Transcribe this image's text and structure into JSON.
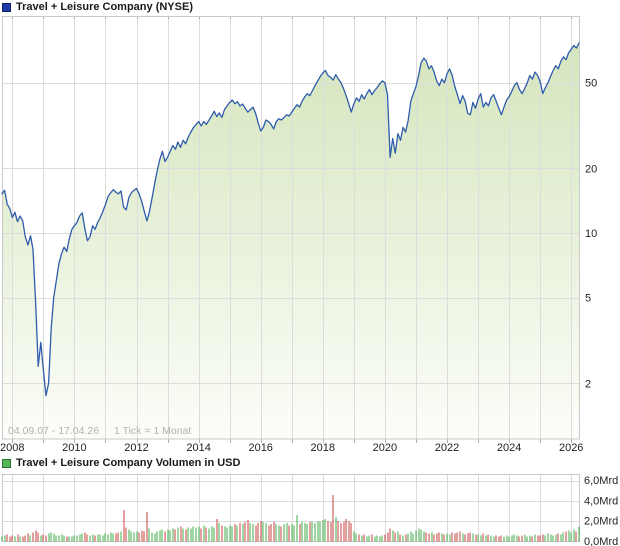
{
  "chart_data": [
    {
      "type": "line",
      "title": "Travel + Leisure Company (NYSE)",
      "legend_color": "#1b3aa5",
      "x_range_label": "04.09.07 - 17.04.26",
      "tick_note": "1 Tick = 1 Monat",
      "x_start_month": "2007-09",
      "x_end_month": "2026-04",
      "x_tick_labels": [
        "2008",
        "2010",
        "2012",
        "2014",
        "2016",
        "2018",
        "2020",
        "2022",
        "2024",
        "2026"
      ],
      "y_scale": "log",
      "y_ticks": [
        50,
        20,
        10,
        5,
        2
      ],
      "y_tick_labels": [
        "50",
        "20",
        "10",
        "5",
        "2"
      ],
      "y_range": [
        1.45,
        85
      ],
      "grid": true,
      "legend_position": "top-left",
      "line_color": "#2e5cab",
      "area_fill_top": "#cfe2b4",
      "area_fill_bottom": "#fbfdf8",
      "series": [
        {
          "name": "Travel + Leisure Company",
          "monthly_close": [
            15.2,
            15.8,
            13.6,
            13.0,
            11.8,
            12.5,
            11.3,
            12.0,
            11.4,
            9.6,
            8.8,
            9.7,
            8.4,
            4.8,
            2.4,
            3.1,
            2.3,
            1.75,
            2.0,
            3.6,
            5.0,
            6.0,
            7.2,
            8.0,
            8.6,
            8.2,
            9.4,
            10.4,
            10.8,
            11.2,
            12.0,
            12.4,
            10.5,
            9.2,
            9.6,
            10.8,
            10.4,
            11.2,
            11.8,
            12.6,
            13.6,
            14.8,
            15.4,
            15.9,
            15.5,
            15.2,
            15.7,
            13.2,
            12.8,
            14.6,
            15.4,
            15.8,
            16.1,
            15.2,
            14.0,
            12.6,
            11.4,
            12.6,
            14.6,
            17.0,
            19.5,
            22.0,
            24.0,
            21.5,
            22.5,
            24.0,
            25.5,
            24.5,
            26.5,
            25.0,
            27.0,
            26.0,
            28.0,
            29.5,
            31.0,
            32.0,
            33.0,
            31.5,
            33.0,
            32.0,
            33.5,
            35.0,
            36.8,
            34.8,
            36.2,
            34.5,
            37.5,
            39.0,
            40.5,
            41.5,
            40.0,
            40.8,
            39.0,
            39.8,
            38.0,
            36.5,
            37.5,
            38.5,
            36.0,
            32.5,
            29.8,
            31.0,
            33.5,
            33.0,
            32.0,
            30.5,
            33.0,
            34.0,
            33.5,
            34.5,
            35.5,
            35.0,
            36.5,
            38.0,
            39.5,
            38.5,
            41.0,
            43.0,
            44.5,
            43.5,
            46.0,
            48.5,
            51.0,
            53.5,
            55.5,
            57.0,
            54.0,
            53.0,
            51.5,
            54.5,
            52.0,
            50.0,
            47.0,
            43.5,
            40.0,
            36.5,
            40.0,
            42.5,
            41.0,
            44.0,
            42.0,
            44.5,
            46.5,
            44.0,
            46.0,
            47.5,
            49.5,
            51.0,
            50.0,
            44.0,
            22.5,
            27.5,
            23.5,
            29.0,
            27.0,
            31.0,
            29.5,
            33.5,
            41.0,
            44.5,
            48.0,
            54.0,
            62.0,
            65.0,
            63.0,
            58.0,
            60.0,
            56.0,
            51.0,
            48.5,
            52.0,
            50.0,
            55.0,
            58.0,
            54.0,
            48.0,
            44.0,
            40.0,
            43.5,
            41.0,
            36.0,
            35.5,
            40.5,
            38.0,
            42.0,
            44.5,
            38.5,
            40.5,
            39.0,
            42.5,
            44.0,
            41.0,
            38.0,
            35.5,
            38.5,
            41.5,
            43.0,
            45.5,
            48.5,
            50.0,
            46.5,
            44.5,
            47.0,
            50.0,
            54.0,
            52.0,
            56.0,
            54.0,
            50.5,
            44.5,
            47.5,
            50.0,
            53.5,
            57.0,
            60.0,
            58.0,
            63.0,
            66.0,
            64.0,
            69.0,
            71.5,
            74.5,
            72.5,
            76.5
          ]
        }
      ]
    },
    {
      "type": "bar",
      "title": "Travel + Leisure Company Volumen in USD",
      "legend_color": "#53b657",
      "unit": "Mrd USD",
      "y_ticks": [
        6,
        4,
        2,
        0
      ],
      "y_tick_labels": [
        "6,0Mrd",
        "4,0Mrd",
        "2,0Mrd",
        "0,0Mrd"
      ],
      "y_range": [
        0,
        6.6
      ],
      "grid": true,
      "up_color": "#3fae4a",
      "down_color": "#c9403e",
      "values_mrd": [
        0.5,
        0.6,
        0.7,
        0.5,
        0.6,
        0.5,
        0.7,
        0.5,
        0.5,
        0.6,
        0.8,
        0.6,
        0.9,
        1.1,
        0.9,
        0.6,
        0.7,
        0.6,
        0.8,
        0.9,
        0.8,
        0.6,
        0.6,
        0.7,
        0.6,
        0.5,
        0.5,
        0.5,
        0.6,
        0.6,
        0.7,
        0.8,
        0.9,
        0.7,
        0.6,
        0.7,
        0.6,
        0.7,
        0.7,
        0.6,
        0.8,
        0.7,
        0.9,
        0.8,
        0.8,
        0.9,
        1.0,
        3.1,
        1.4,
        1.2,
        1.0,
        0.9,
        1.0,
        0.9,
        1.1,
        1.0,
        2.9,
        1.3,
        0.9,
        0.8,
        1.0,
        1.1,
        1.2,
        1.0,
        1.2,
        1.1,
        1.3,
        1.2,
        1.4,
        1.5,
        1.3,
        1.2,
        1.4,
        1.3,
        1.5,
        1.4,
        1.5,
        1.3,
        1.6,
        1.4,
        1.3,
        1.5,
        1.4,
        2.2,
        1.8,
        1.6,
        1.5,
        1.4,
        1.6,
        1.5,
        1.7,
        1.6,
        1.8,
        1.7,
        1.9,
        2.1,
        1.8,
        1.7,
        1.6,
        1.8,
        2.0,
        1.9,
        1.8,
        1.6,
        1.7,
        1.9,
        1.7,
        1.6,
        1.5,
        1.7,
        1.8,
        1.6,
        1.7,
        1.6,
        2.6,
        1.7,
        1.9,
        1.8,
        1.7,
        1.9,
        1.9,
        1.8,
        2.0,
        1.9,
        2.1,
        2.2,
        2.0,
        1.9,
        4.6,
        2.4,
        2.0,
        1.8,
        1.9,
        2.2,
        2.0,
        1.8,
        1.0,
        0.8,
        0.7,
        0.6,
        0.7,
        0.5,
        0.6,
        0.7,
        0.5,
        0.6,
        0.5,
        0.6,
        0.7,
        0.9,
        1.3,
        1.1,
        0.9,
        1.0,
        0.7,
        0.6,
        0.7,
        0.8,
        1.0,
        0.8,
        1.1,
        1.3,
        1.2,
        1.0,
        0.9,
        0.8,
        0.9,
        0.7,
        0.8,
        0.9,
        0.8,
        0.7,
        0.8,
        0.7,
        0.9,
        0.8,
        0.9,
        1.0,
        0.8,
        0.7,
        0.8,
        0.9,
        0.8,
        0.7,
        0.7,
        0.6,
        0.8,
        0.6,
        0.7,
        0.6,
        0.5,
        0.6,
        0.5,
        0.6,
        0.5,
        0.6,
        0.5,
        0.6,
        0.7,
        0.6,
        0.5,
        0.6,
        0.7,
        0.5,
        0.6,
        0.5,
        0.7,
        0.6,
        0.6,
        0.7,
        0.6,
        0.8,
        0.7,
        0.6,
        0.7,
        0.8,
        0.7,
        0.9,
        1.0,
        1.1,
        0.9,
        1.2,
        1.0,
        1.5
      ]
    }
  ]
}
